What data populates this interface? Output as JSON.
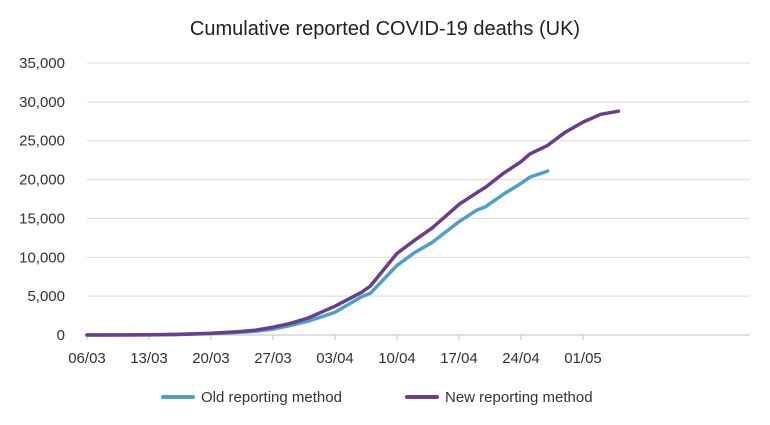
{
  "chart_data": {
    "type": "line",
    "title": "Cumulative reported COVID-19 deaths (UK)",
    "xlabel": "",
    "ylabel": "",
    "x_ticks": [
      "06/03",
      "13/03",
      "20/03",
      "27/03",
      "03/04",
      "10/04",
      "17/04",
      "24/04",
      "01/05"
    ],
    "y_ticks": [
      "0",
      "5,000",
      "10,000",
      "15,000",
      "20,000",
      "25,000",
      "30,000",
      "35,000"
    ],
    "ylim": [
      0,
      35000
    ],
    "xlim_days_label": "06/03 to 05/05",
    "grid": "horizontal",
    "legend_position": "bottom",
    "series": [
      {
        "name": "Old reporting method",
        "color": "#4e9fc9",
        "points": [
          [
            "06/03",
            0
          ],
          [
            "10/03",
            6
          ],
          [
            "13/03",
            10
          ],
          [
            "16/03",
            50
          ],
          [
            "20/03",
            180
          ],
          [
            "23/03",
            335
          ],
          [
            "25/03",
            470
          ],
          [
            "27/03",
            760
          ],
          [
            "29/03",
            1230
          ],
          [
            "31/03",
            1790
          ],
          [
            "03/04",
            2920
          ],
          [
            "06/04",
            4930
          ],
          [
            "07/04",
            5370
          ],
          [
            "10/04",
            8960
          ],
          [
            "12/04",
            10610
          ],
          [
            "14/04",
            11930
          ],
          [
            "17/04",
            14580
          ],
          [
            "19/04",
            16060
          ],
          [
            "20/04",
            16510
          ],
          [
            "22/04",
            18100
          ],
          [
            "24/04",
            19510
          ],
          [
            "25/04",
            20320
          ],
          [
            "27/04",
            21090
          ]
        ]
      },
      {
        "name": "New reporting method",
        "color": "#6a3d8f",
        "points": [
          [
            "06/03",
            0
          ],
          [
            "10/03",
            10
          ],
          [
            "13/03",
            30
          ],
          [
            "16/03",
            80
          ],
          [
            "20/03",
            230
          ],
          [
            "23/03",
            420
          ],
          [
            "25/03",
            620
          ],
          [
            "27/03",
            1000
          ],
          [
            "29/03",
            1500
          ],
          [
            "31/03",
            2200
          ],
          [
            "03/04",
            3700
          ],
          [
            "06/04",
            5500
          ],
          [
            "07/04",
            6300
          ],
          [
            "10/04",
            10500
          ],
          [
            "12/04",
            12200
          ],
          [
            "14/04",
            13800
          ],
          [
            "17/04",
            16800
          ],
          [
            "19/04",
            18300
          ],
          [
            "20/04",
            19000
          ],
          [
            "22/04",
            20800
          ],
          [
            "24/04",
            22300
          ],
          [
            "25/04",
            23300
          ],
          [
            "27/04",
            24400
          ],
          [
            "29/04",
            26100
          ],
          [
            "01/05",
            27400
          ],
          [
            "03/05",
            28400
          ],
          [
            "05/05",
            28800
          ]
        ]
      }
    ]
  }
}
